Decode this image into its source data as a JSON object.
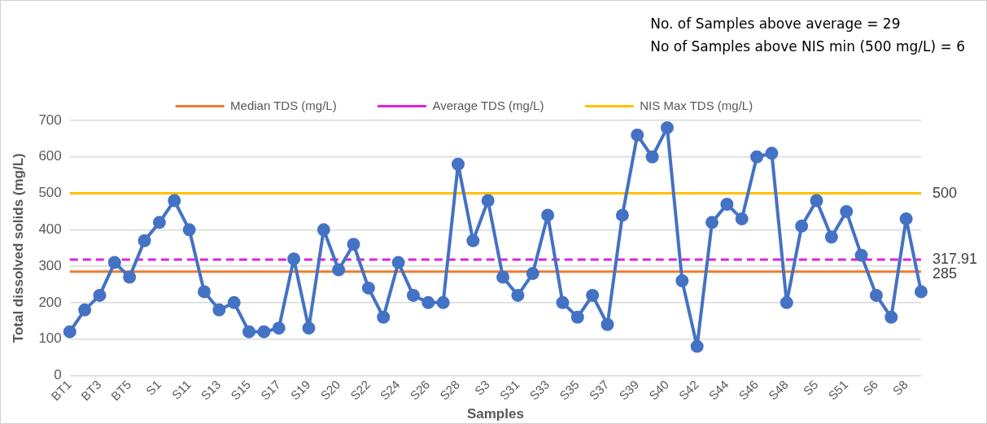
{
  "chart_data": {
    "type": "line",
    "xlabel": "Samples",
    "ylabel": "Total dissolved solids (mg/L)",
    "categories": [
      "BT1",
      null,
      "BT3",
      null,
      "BT5",
      null,
      "S1",
      null,
      "S11",
      null,
      "S13",
      null,
      "S15",
      null,
      "S17",
      null,
      "S19",
      null,
      "S20",
      null,
      "S22",
      null,
      "S24",
      null,
      "S26",
      null,
      "S28",
      null,
      "S3",
      null,
      "S31",
      null,
      "S33",
      null,
      "S35",
      null,
      "S37",
      null,
      "S39",
      null,
      "S40",
      null,
      "S42",
      null,
      "S44",
      null,
      "S46",
      null,
      "S48",
      null,
      "S5",
      null,
      "S51",
      null,
      "S6",
      null,
      "S8",
      null
    ],
    "series": [
      {
        "color": "#4472c4",
        "marker": "circle",
        "line_style": "solid",
        "values": [
          120,
          180,
          220,
          310,
          270,
          370,
          420,
          480,
          400,
          230,
          180,
          200,
          120,
          120,
          130,
          320,
          130,
          400,
          290,
          360,
          240,
          160,
          310,
          220,
          200,
          200,
          580,
          370,
          480,
          270,
          220,
          280,
          440,
          200,
          160,
          220,
          140,
          440,
          660,
          600,
          680,
          260,
          80,
          420,
          470,
          430,
          600,
          610,
          200,
          410,
          480,
          380,
          450,
          330,
          220,
          160,
          430,
          230
        ]
      },
      {
        "name": "Median TDS (mg/L)",
        "color": "#ed7d31",
        "marker": "none",
        "line_style": "solid",
        "value_labels": [
          null,
          null,
          null,
          null,
          null,
          null,
          null,
          null,
          null,
          null,
          null,
          null,
          null,
          null,
          null,
          null,
          null,
          null,
          null,
          null,
          null,
          null,
          null,
          null,
          null,
          null,
          null,
          null,
          null,
          null,
          null,
          null,
          null,
          null,
          null,
          null,
          null,
          null,
          null,
          null,
          null,
          null,
          null,
          null,
          null,
          null,
          null,
          null,
          null,
          null,
          null,
          null,
          null,
          null,
          null,
          null,
          null,
          "285"
        ],
        "values": [
          285,
          285,
          285,
          285,
          285,
          285,
          285,
          285,
          285,
          285,
          285,
          285,
          285,
          285,
          285,
          285,
          285,
          285,
          285,
          285,
          285,
          285,
          285,
          285,
          285,
          285,
          285,
          285,
          285,
          285,
          285,
          285,
          285,
          285,
          285,
          285,
          285,
          285,
          285,
          285,
          285,
          285,
          285,
          285,
          285,
          285,
          285,
          285,
          285,
          285,
          285,
          285,
          285,
          285,
          285,
          285,
          285,
          285
        ]
      },
      {
        "name": "Average TDS (mg/L)",
        "color": "#dd22dd",
        "marker": "none",
        "line_style": "dashed",
        "value_labels": [
          null,
          null,
          null,
          null,
          null,
          null,
          null,
          null,
          null,
          null,
          null,
          null,
          null,
          null,
          null,
          null,
          null,
          null,
          null,
          null,
          null,
          null,
          null,
          null,
          null,
          null,
          null,
          null,
          null,
          null,
          null,
          null,
          null,
          null,
          null,
          null,
          null,
          null,
          null,
          null,
          null,
          null,
          null,
          null,
          null,
          null,
          null,
          null,
          null,
          null,
          null,
          null,
          null,
          null,
          null,
          null,
          null,
          "317.91"
        ],
        "values": [
          317.91,
          317.91,
          317.91,
          317.91,
          317.91,
          317.91,
          317.91,
          317.91,
          317.91,
          317.91,
          317.91,
          317.91,
          317.91,
          317.91,
          317.91,
          317.91,
          317.91,
          317.91,
          317.91,
          317.91,
          317.91,
          317.91,
          317.91,
          317.91,
          317.91,
          317.91,
          317.91,
          317.91,
          317.91,
          317.91,
          317.91,
          317.91,
          317.91,
          317.91,
          317.91,
          317.91,
          317.91,
          317.91,
          317.91,
          317.91,
          317.91,
          317.91,
          317.91,
          317.91,
          317.91,
          317.91,
          317.91,
          317.91,
          317.91,
          317.91,
          317.91,
          317.91,
          317.91,
          317.91,
          317.91,
          317.91,
          317.91,
          317.91
        ]
      },
      {
        "name": "NIS Max TDS (mg/L)",
        "color": "#ffc000",
        "marker": "none",
        "line_style": "solid",
        "value_labels": [
          null,
          null,
          null,
          null,
          null,
          null,
          null,
          null,
          null,
          null,
          null,
          null,
          null,
          null,
          null,
          null,
          null,
          null,
          null,
          null,
          null,
          null,
          null,
          null,
          null,
          null,
          null,
          null,
          null,
          null,
          null,
          null,
          null,
          null,
          null,
          null,
          null,
          null,
          null,
          null,
          null,
          null,
          null,
          null,
          null,
          null,
          null,
          null,
          null,
          null,
          null,
          null,
          null,
          null,
          null,
          null,
          null,
          "500"
        ],
        "values": [
          500,
          500,
          500,
          500,
          500,
          500,
          500,
          500,
          500,
          500,
          500,
          500,
          500,
          500,
          500,
          500,
          500,
          500,
          500,
          500,
          500,
          500,
          500,
          500,
          500,
          500,
          500,
          500,
          500,
          500,
          500,
          500,
          500,
          500,
          500,
          500,
          500,
          500,
          500,
          500,
          500,
          500,
          500,
          500,
          500,
          500,
          500,
          500,
          500,
          500,
          500,
          500,
          500,
          500,
          500,
          500,
          500,
          500
        ]
      }
    ],
    "ylim": [
      0,
      700
    ],
    "yticks": [
      0,
      100,
      200,
      300,
      400,
      500,
      600,
      700
    ],
    "grid": "y",
    "legend": "top",
    "annotations": [
      "No. of Samples above average = 29",
      "No of Samples above NIS min (500 mg/L) = 6"
    ]
  }
}
